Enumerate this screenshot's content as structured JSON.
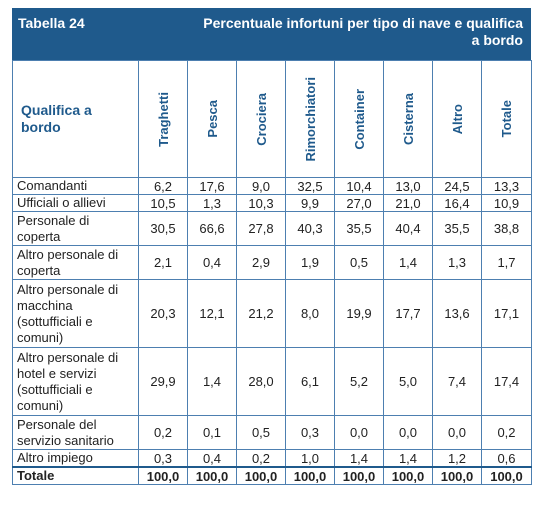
{
  "header": {
    "table_number": "Tabella 24",
    "title": "Percentuale infortuni per tipo di nave e qualifica a bordo"
  },
  "columns": {
    "row_header": "Qualifica a bordo",
    "ship_types": [
      "Traghetti",
      "Pesca",
      "Crociera",
      "Rimorchiatori",
      "Container",
      "Cisterna",
      "Altro",
      "Totale"
    ]
  },
  "rows": [
    {
      "label": "Comandanti",
      "values": [
        "6,2",
        "17,6",
        "9,0",
        "32,5",
        "10,4",
        "13,0",
        "24,5",
        "13,3"
      ]
    },
    {
      "label": "Ufficiali o allievi",
      "values": [
        "10,5",
        "1,3",
        "10,3",
        "9,9",
        "27,0",
        "21,0",
        "16,4",
        "10,9"
      ]
    },
    {
      "label": "Personale di coperta",
      "values": [
        "30,5",
        "66,6",
        "27,8",
        "40,3",
        "35,5",
        "40,4",
        "35,5",
        "38,8"
      ]
    },
    {
      "label": "Altro personale di coperta",
      "values": [
        "2,1",
        "0,4",
        "2,9",
        "1,9",
        "0,5",
        "1,4",
        "1,3",
        "1,7"
      ]
    },
    {
      "label": "Altro personale di macchina (sottufficiali e comuni)",
      "values": [
        "20,3",
        "12,1",
        "21,2",
        "8,0",
        "19,9",
        "17,7",
        "13,6",
        "17,1"
      ]
    },
    {
      "label": "Altro personale di hotel e servizi (sottufficiali e comuni)",
      "values": [
        "29,9",
        "1,4",
        "28,0",
        "6,1",
        "5,2",
        "5,0",
        "7,4",
        "17,4"
      ]
    },
    {
      "label": "Personale del servizio sanitario",
      "values": [
        "0,2",
        "0,1",
        "0,5",
        "0,3",
        "0,0",
        "0,0",
        "0,0",
        "0,2"
      ]
    },
    {
      "label": "Altro impiego",
      "values": [
        "0,3",
        "0,4",
        "0,2",
        "1,0",
        "1,4",
        "1,4",
        "1,2",
        "0,6"
      ]
    }
  ],
  "total_row": {
    "label": "Totale",
    "values": [
      "100,0",
      "100,0",
      "100,0",
      "100,0",
      "100,0",
      "100,0",
      "100,0",
      "100,0"
    ]
  },
  "colors": {
    "header_bg": "#1f5a8c",
    "border": "#4d7fb0",
    "header_text": "#1f5a8c"
  }
}
